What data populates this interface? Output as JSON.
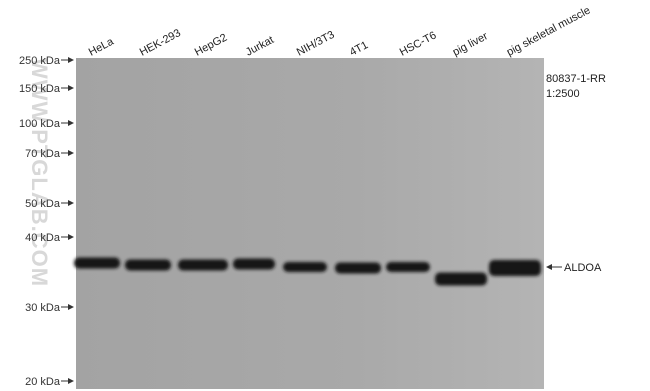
{
  "lanes": [
    "HeLa",
    "HEK-293",
    "HepG2",
    "Jurkat",
    "NIH/3T3",
    "4T1",
    "HSC-T6",
    "pig liver",
    "pig skeletal muscle"
  ],
  "markers": [
    "250 kDa",
    "150 kDa",
    "100 kDa",
    "70 kDa",
    "50 kDa",
    "40 kDa",
    "30 kDa",
    "20 kDa"
  ],
  "antibody": {
    "catalog": "80837-1-RR",
    "dilution": "1:2500"
  },
  "band_label": "ALDOA",
  "watermark": "WWW.PTGLAB.COM"
}
